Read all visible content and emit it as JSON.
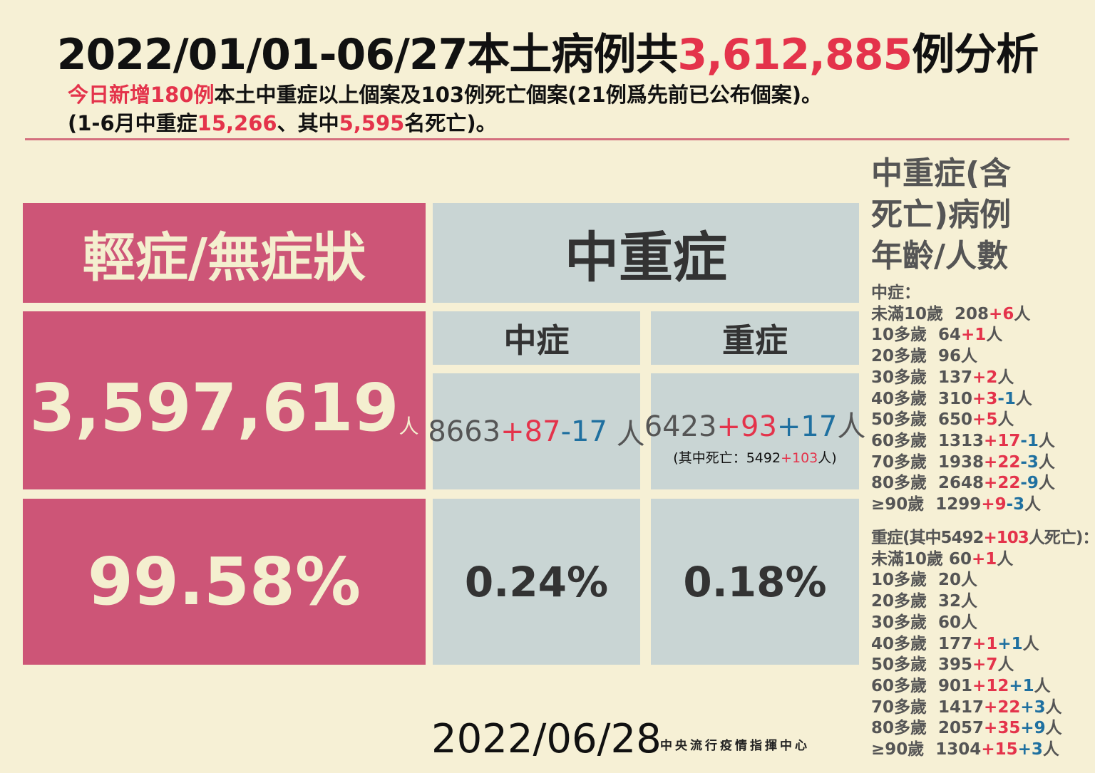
{
  "colors": {
    "background": "#f6f0d5",
    "pink": "#cd5577",
    "grey_panel": "#c9d5d4",
    "red": "#e4334b",
    "blue": "#1f70a0"
  },
  "title": [
    {
      "t": "2022/01/01-06/27本土病例共",
      "c": "k"
    },
    {
      "t": "3,612,885",
      "c": "r"
    },
    {
      "t": "例分析",
      "c": "k"
    }
  ],
  "subtitle_1": [
    {
      "t": "今日新增180例",
      "c": "r"
    },
    {
      "t": "本土中重症以上個案及103例死亡個案(21例爲先前已公布個案)。",
      "c": "k"
    }
  ],
  "subtitle_2": [
    {
      "t": "(1-6月中重症",
      "c": "k"
    },
    {
      "t": "15,266",
      "c": "r"
    },
    {
      "t": "、其中",
      "c": "k"
    },
    {
      "t": "5,595",
      "c": "r"
    },
    {
      "t": "名死亡)。",
      "c": "k"
    }
  ],
  "mild": {
    "header": "輕症/無症狀",
    "count": "3,597,619",
    "unit": "人",
    "percent": "99.58%"
  },
  "severe_group": {
    "header": "中重症"
  },
  "moderate": {
    "label": "中症",
    "value": [
      {
        "t": "8663",
        "c": "g"
      },
      {
        "t": "+87",
        "c": "r"
      },
      {
        "t": "-17",
        "c": "b"
      },
      {
        "t": " 人",
        "c": "g"
      }
    ],
    "percent": "0.24%"
  },
  "severe": {
    "label": "重症",
    "value": [
      {
        "t": "6423",
        "c": "g"
      },
      {
        "t": "+93",
        "c": "r"
      },
      {
        "t": "+17",
        "c": "b"
      },
      {
        "t": "人",
        "c": "g"
      }
    ],
    "death_note": [
      {
        "t": "(其中死亡：5492",
        "c": "k"
      },
      {
        "t": "+103",
        "c": "r"
      },
      {
        "t": "人)",
        "c": "k"
      }
    ],
    "percent": "0.18%"
  },
  "age_panel": {
    "heading": [
      "中重症(含",
      "死亡)病例",
      "年齡/人數"
    ],
    "moderate_title": [
      {
        "t": "中症：",
        "c": "g"
      }
    ],
    "moderate_rows": [
      [
        {
          "t": "未滿10歲  208",
          "c": "g"
        },
        {
          "t": "+6",
          "c": "r"
        },
        {
          "t": "人",
          "c": "g"
        }
      ],
      [
        {
          "t": "10多歲  64",
          "c": "g"
        },
        {
          "t": "+1",
          "c": "r"
        },
        {
          "t": "人",
          "c": "g"
        }
      ],
      [
        {
          "t": "20多歲  96人",
          "c": "g"
        }
      ],
      [
        {
          "t": "30多歲  137",
          "c": "g"
        },
        {
          "t": "+2",
          "c": "r"
        },
        {
          "t": "人",
          "c": "g"
        }
      ],
      [
        {
          "t": "40多歲  310",
          "c": "g"
        },
        {
          "t": "+3",
          "c": "r"
        },
        {
          "t": "-1",
          "c": "b"
        },
        {
          "t": "人",
          "c": "g"
        }
      ],
      [
        {
          "t": "50多歲  650",
          "c": "g"
        },
        {
          "t": "+5",
          "c": "r"
        },
        {
          "t": "人",
          "c": "g"
        }
      ],
      [
        {
          "t": "60多歲  1313",
          "c": "g"
        },
        {
          "t": "+17",
          "c": "r"
        },
        {
          "t": "-1",
          "c": "b"
        },
        {
          "t": "人",
          "c": "g"
        }
      ],
      [
        {
          "t": "70多歲  1938",
          "c": "g"
        },
        {
          "t": "+22",
          "c": "r"
        },
        {
          "t": "-3",
          "c": "b"
        },
        {
          "t": "人",
          "c": "g"
        }
      ],
      [
        {
          "t": "80多歲  2648",
          "c": "g"
        },
        {
          "t": "+22",
          "c": "r"
        },
        {
          "t": "-9",
          "c": "b"
        },
        {
          "t": "人",
          "c": "g"
        }
      ],
      [
        {
          "t": "≥90歲  1299",
          "c": "g"
        },
        {
          "t": "+9",
          "c": "r"
        },
        {
          "t": "-3",
          "c": "b"
        },
        {
          "t": "人",
          "c": "g"
        }
      ]
    ],
    "severe_title": [
      {
        "t": "重症(其中5492",
        "c": "g"
      },
      {
        "t": "+103",
        "c": "r"
      },
      {
        "t": "人死亡)：",
        "c": "g"
      }
    ],
    "severe_rows": [
      [
        {
          "t": "未滿10歲 60",
          "c": "g"
        },
        {
          "t": "+1",
          "c": "r"
        },
        {
          "t": "人",
          "c": "g"
        }
      ],
      [
        {
          "t": "10多歲  20人",
          "c": "g"
        }
      ],
      [
        {
          "t": "20多歲  32人",
          "c": "g"
        }
      ],
      [
        {
          "t": "30多歲  60人",
          "c": "g"
        }
      ],
      [
        {
          "t": "40多歲  177",
          "c": "g"
        },
        {
          "t": "+1",
          "c": "r"
        },
        {
          "t": "+1",
          "c": "b"
        },
        {
          "t": "人",
          "c": "g"
        }
      ],
      [
        {
          "t": "50多歲  395",
          "c": "g"
        },
        {
          "t": "+7",
          "c": "r"
        },
        {
          "t": "人",
          "c": "g"
        }
      ],
      [
        {
          "t": "60多歲  901",
          "c": "g"
        },
        {
          "t": "+12",
          "c": "r"
        },
        {
          "t": "+1",
          "c": "b"
        },
        {
          "t": "人",
          "c": "g"
        }
      ],
      [
        {
          "t": "70多歲  1417",
          "c": "g"
        },
        {
          "t": "+22",
          "c": "r"
        },
        {
          "t": "+3",
          "c": "b"
        },
        {
          "t": "人",
          "c": "g"
        }
      ],
      [
        {
          "t": "80多歲  2057",
          "c": "g"
        },
        {
          "t": "+35",
          "c": "r"
        },
        {
          "t": "+9",
          "c": "b"
        },
        {
          "t": "人",
          "c": "g"
        }
      ],
      [
        {
          "t": "≥90歲  1304",
          "c": "g"
        },
        {
          "t": "+15",
          "c": "r"
        },
        {
          "t": "+3",
          "c": "b"
        },
        {
          "t": "人",
          "c": "g"
        }
      ]
    ]
  },
  "footer": {
    "date": "2022/06/28",
    "agency": "中央流行疫情指揮中心"
  }
}
